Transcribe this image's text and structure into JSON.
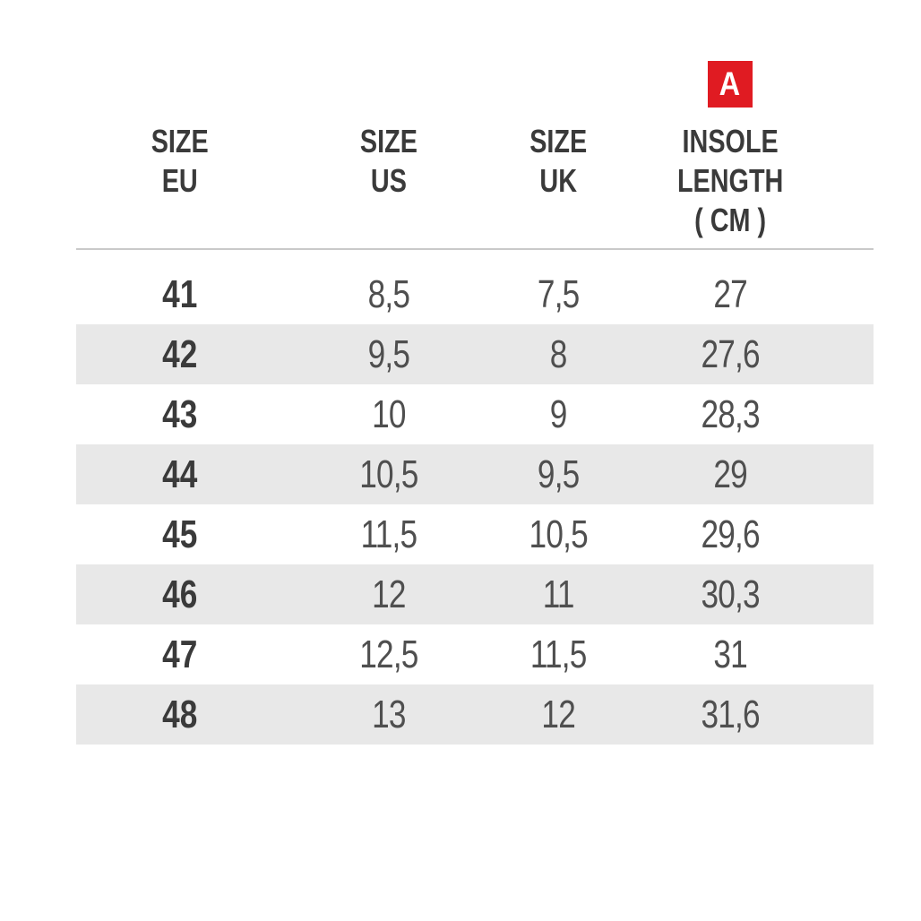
{
  "page": {
    "background": "#ffffff"
  },
  "legend_badge": {
    "label": "A",
    "background": "#e01b22",
    "text_color": "#ffffff"
  },
  "table": {
    "columns": [
      {
        "id": "size_eu",
        "label_lines": [
          "SIZE",
          "EU"
        ]
      },
      {
        "id": "size_us",
        "label_lines": [
          "SIZE",
          "US"
        ]
      },
      {
        "id": "size_uk",
        "label_lines": [
          "SIZE",
          "UK"
        ]
      },
      {
        "id": "insole_length",
        "label_lines": [
          "INSOLE",
          "LENGTH",
          "( CM )"
        ]
      }
    ],
    "rows": [
      {
        "eu": "41",
        "us": "8,5",
        "uk": "7,5",
        "insole": "27"
      },
      {
        "eu": "42",
        "us": "9,5",
        "uk": "8",
        "insole": "27,6"
      },
      {
        "eu": "43",
        "us": "10",
        "uk": "9",
        "insole": "28,3"
      },
      {
        "eu": "44",
        "us": "10,5",
        "uk": "9,5",
        "insole": "29"
      },
      {
        "eu": "45",
        "us": "11,5",
        "uk": "10,5",
        "insole": "29,6"
      },
      {
        "eu": "46",
        "us": "12",
        "uk": "11",
        "insole": "30,3"
      },
      {
        "eu": "47",
        "us": "12,5",
        "uk": "11,5",
        "insole": "31"
      },
      {
        "eu": "48",
        "us": "13",
        "uk": "12",
        "insole": "31,6"
      }
    ],
    "style": {
      "alt_row_background": "#e8e8e8",
      "divider_color": "#c9c9c9",
      "header_text_color": "#3a3a3a",
      "eu_value_color": "#3a3a3a",
      "value_color": "#4f4f4f"
    }
  }
}
